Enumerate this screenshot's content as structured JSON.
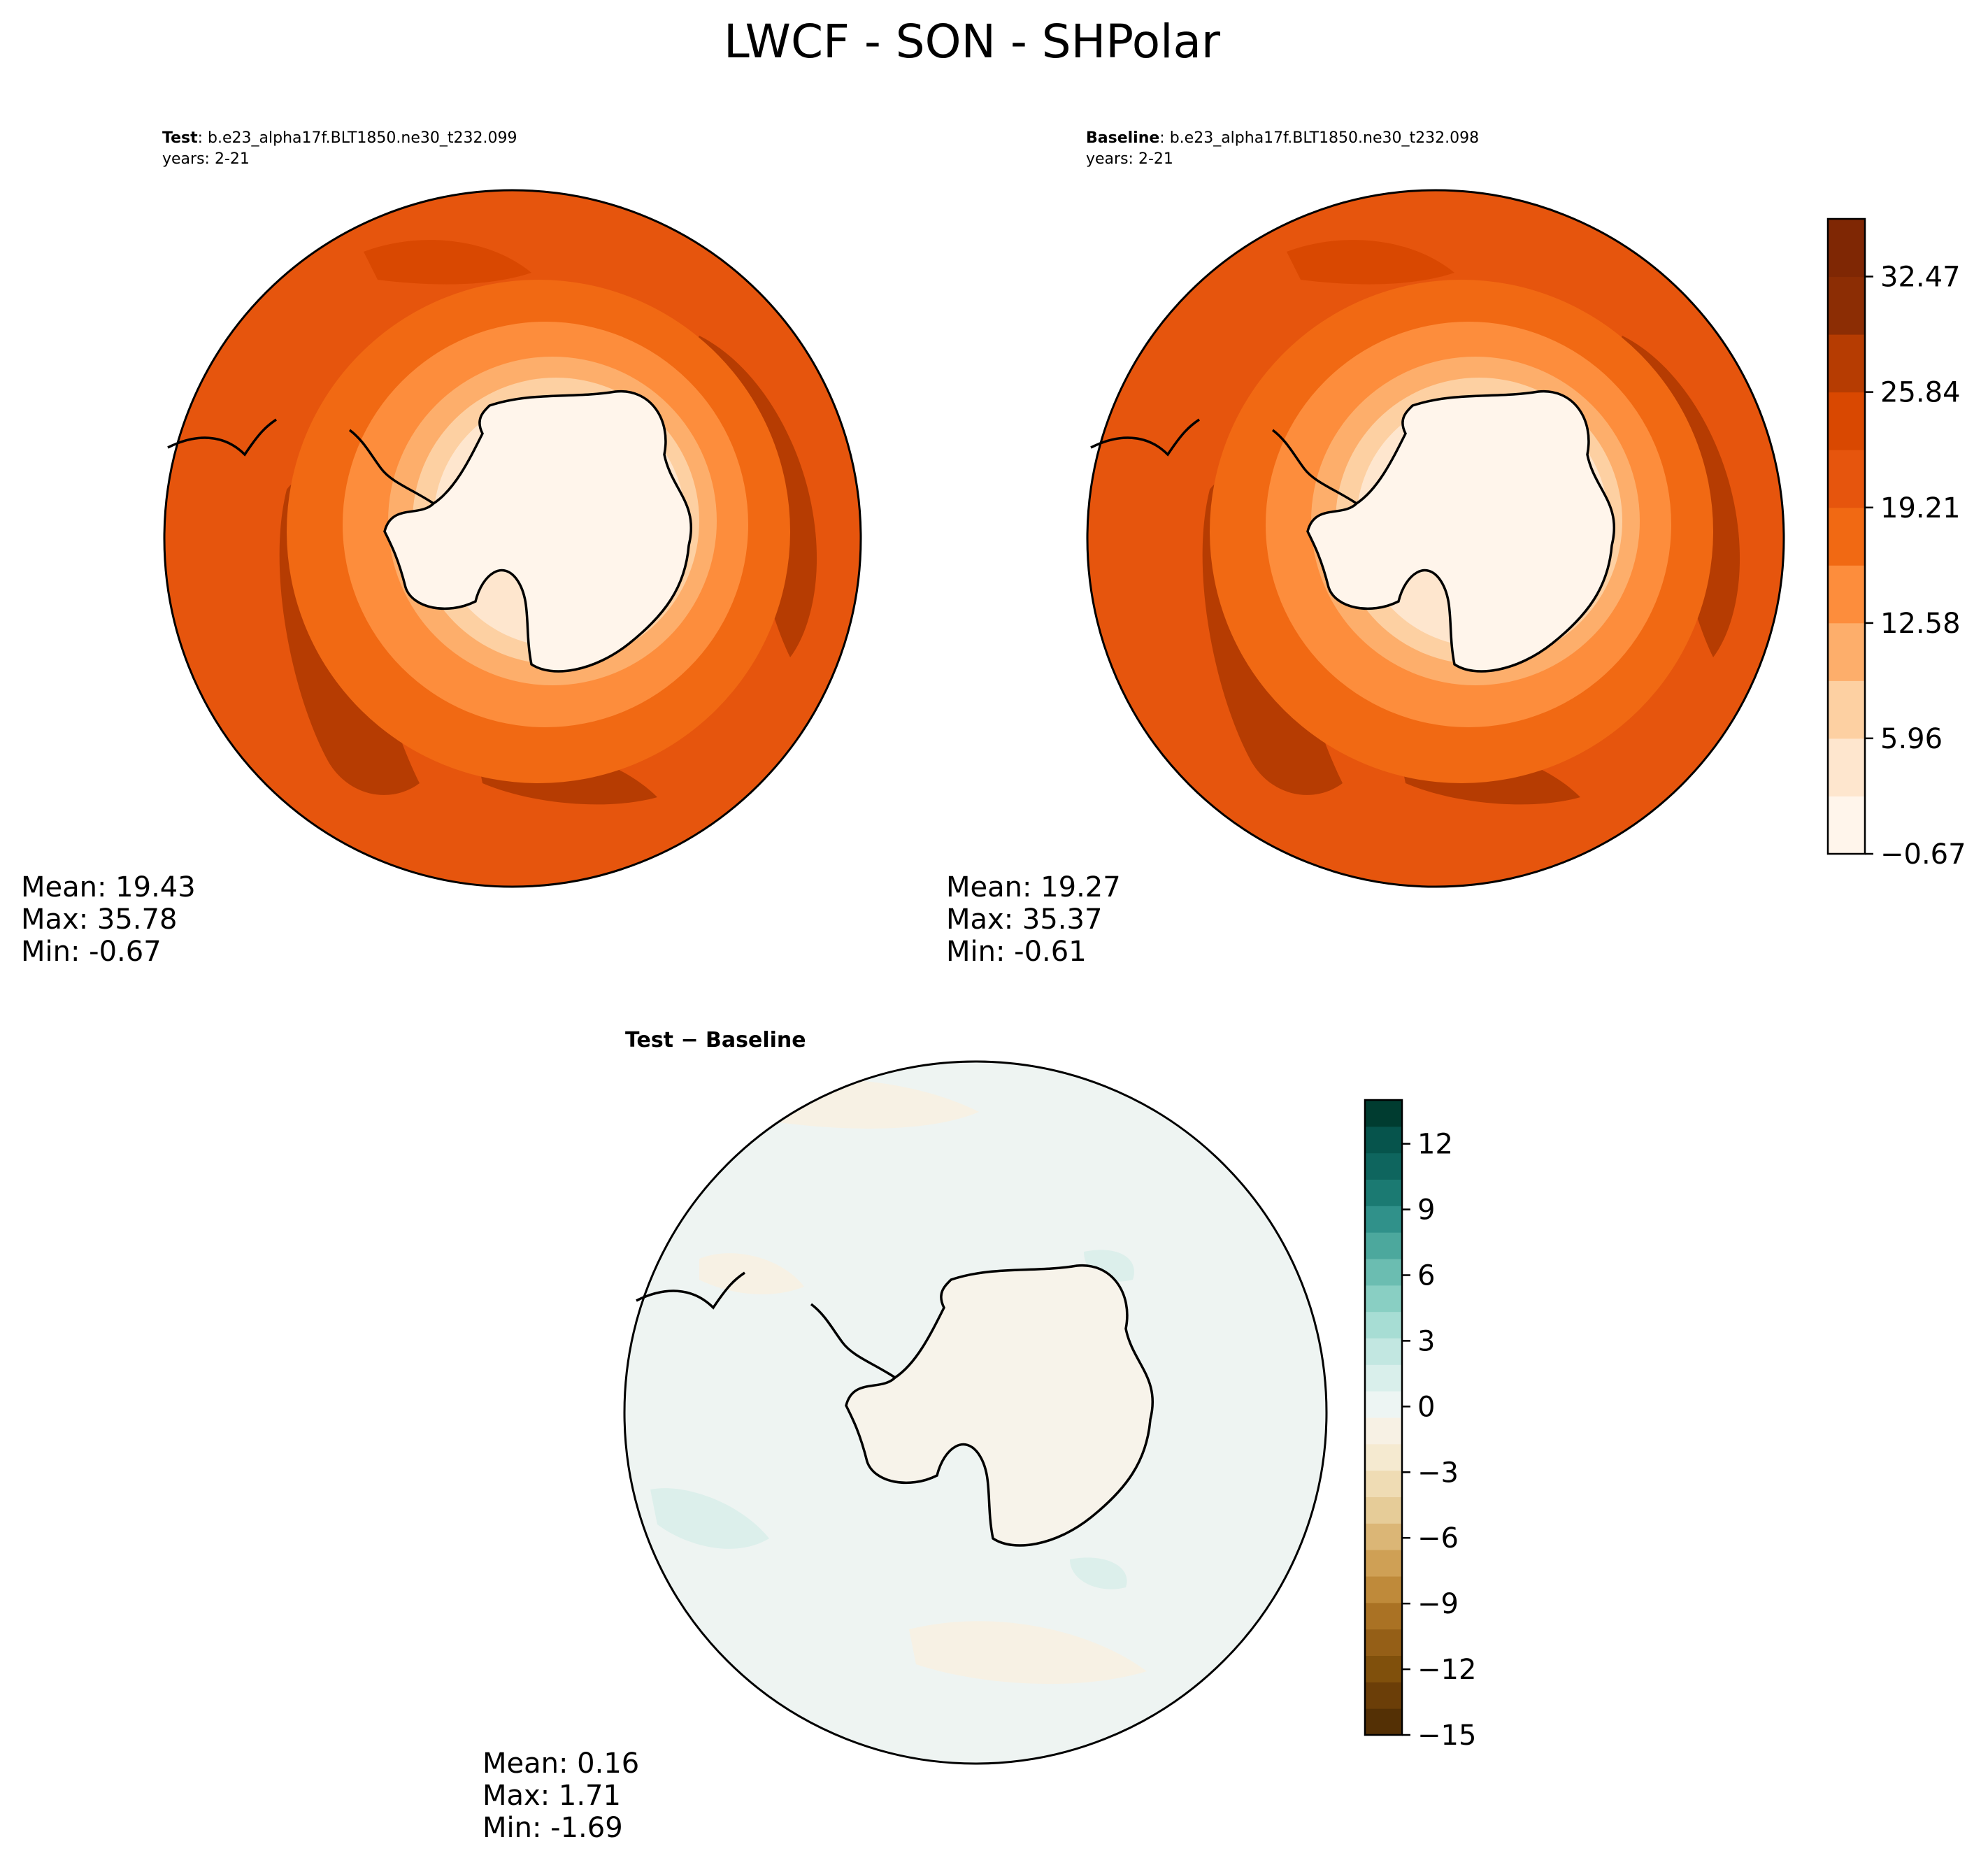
{
  "title": "LWCF - SON - SHPolar",
  "panels": [
    {
      "id": "test",
      "label_bold": "Test",
      "label_rest": ": b.e23_alpha17f.BLT1850.ne30_t232.099",
      "years": "years: 2-21",
      "stats": [
        "Mean: 19.43",
        "Max: 35.78",
        "Min: -0.67"
      ]
    },
    {
      "id": "baseline",
      "label_bold": "Baseline",
      "label_rest": ": b.e23_alpha17f.BLT1850.ne30_t232.098",
      "years": "years: 2-21",
      "stats": [
        "Mean: 19.27",
        "Max: 35.37",
        "Min: -0.61"
      ]
    },
    {
      "id": "diff",
      "label_bold": "Test − Baseline",
      "label_rest": "",
      "years": "",
      "stats": [
        "Mean:  0.16",
        "Max:  1.71",
        "Min: -1.69"
      ]
    }
  ],
  "colorbar_top": {
    "min": -0.67,
    "max": 35.78,
    "ticks": [
      "−0.67",
      "5.96",
      "12.58",
      "19.21",
      "25.84",
      "32.47"
    ],
    "tick_values": [
      -0.67,
      5.96,
      12.58,
      19.21,
      25.84,
      32.47
    ],
    "colors": [
      "#fff5eb",
      "#fee6ce",
      "#fdd0a2",
      "#fdae6b",
      "#fd8d3c",
      "#f16913",
      "#e6550d",
      "#d94801",
      "#b63c02",
      "#8c2d04",
      "#7f2704"
    ]
  },
  "colorbar_diff": {
    "min": -15,
    "max": 14,
    "ticks": [
      "−15",
      "−12",
      "−9",
      "−6",
      "−3",
      "0",
      "3",
      "6",
      "9",
      "12"
    ],
    "tick_values": [
      -15,
      -12,
      -9,
      -6,
      -3,
      0,
      3,
      6,
      9,
      12
    ],
    "colors_neg": [
      "#543005",
      "#6b3e08",
      "#80500c",
      "#955f17",
      "#aa7224",
      "#bf8a3a",
      "#cfa055",
      "#dbb676",
      "#e6cc98",
      "#efdcb4",
      "#f5ead0",
      "#f7f1e4"
    ],
    "colors_pos": [
      "#edf5f3",
      "#d9efeb",
      "#c2e7e1",
      "#a7ddd4",
      "#89cfc3",
      "#6bbdb1",
      "#4ca89d",
      "#30918a",
      "#1b7a72",
      "#0e655e",
      "#06544c",
      "#003c30"
    ]
  }
}
